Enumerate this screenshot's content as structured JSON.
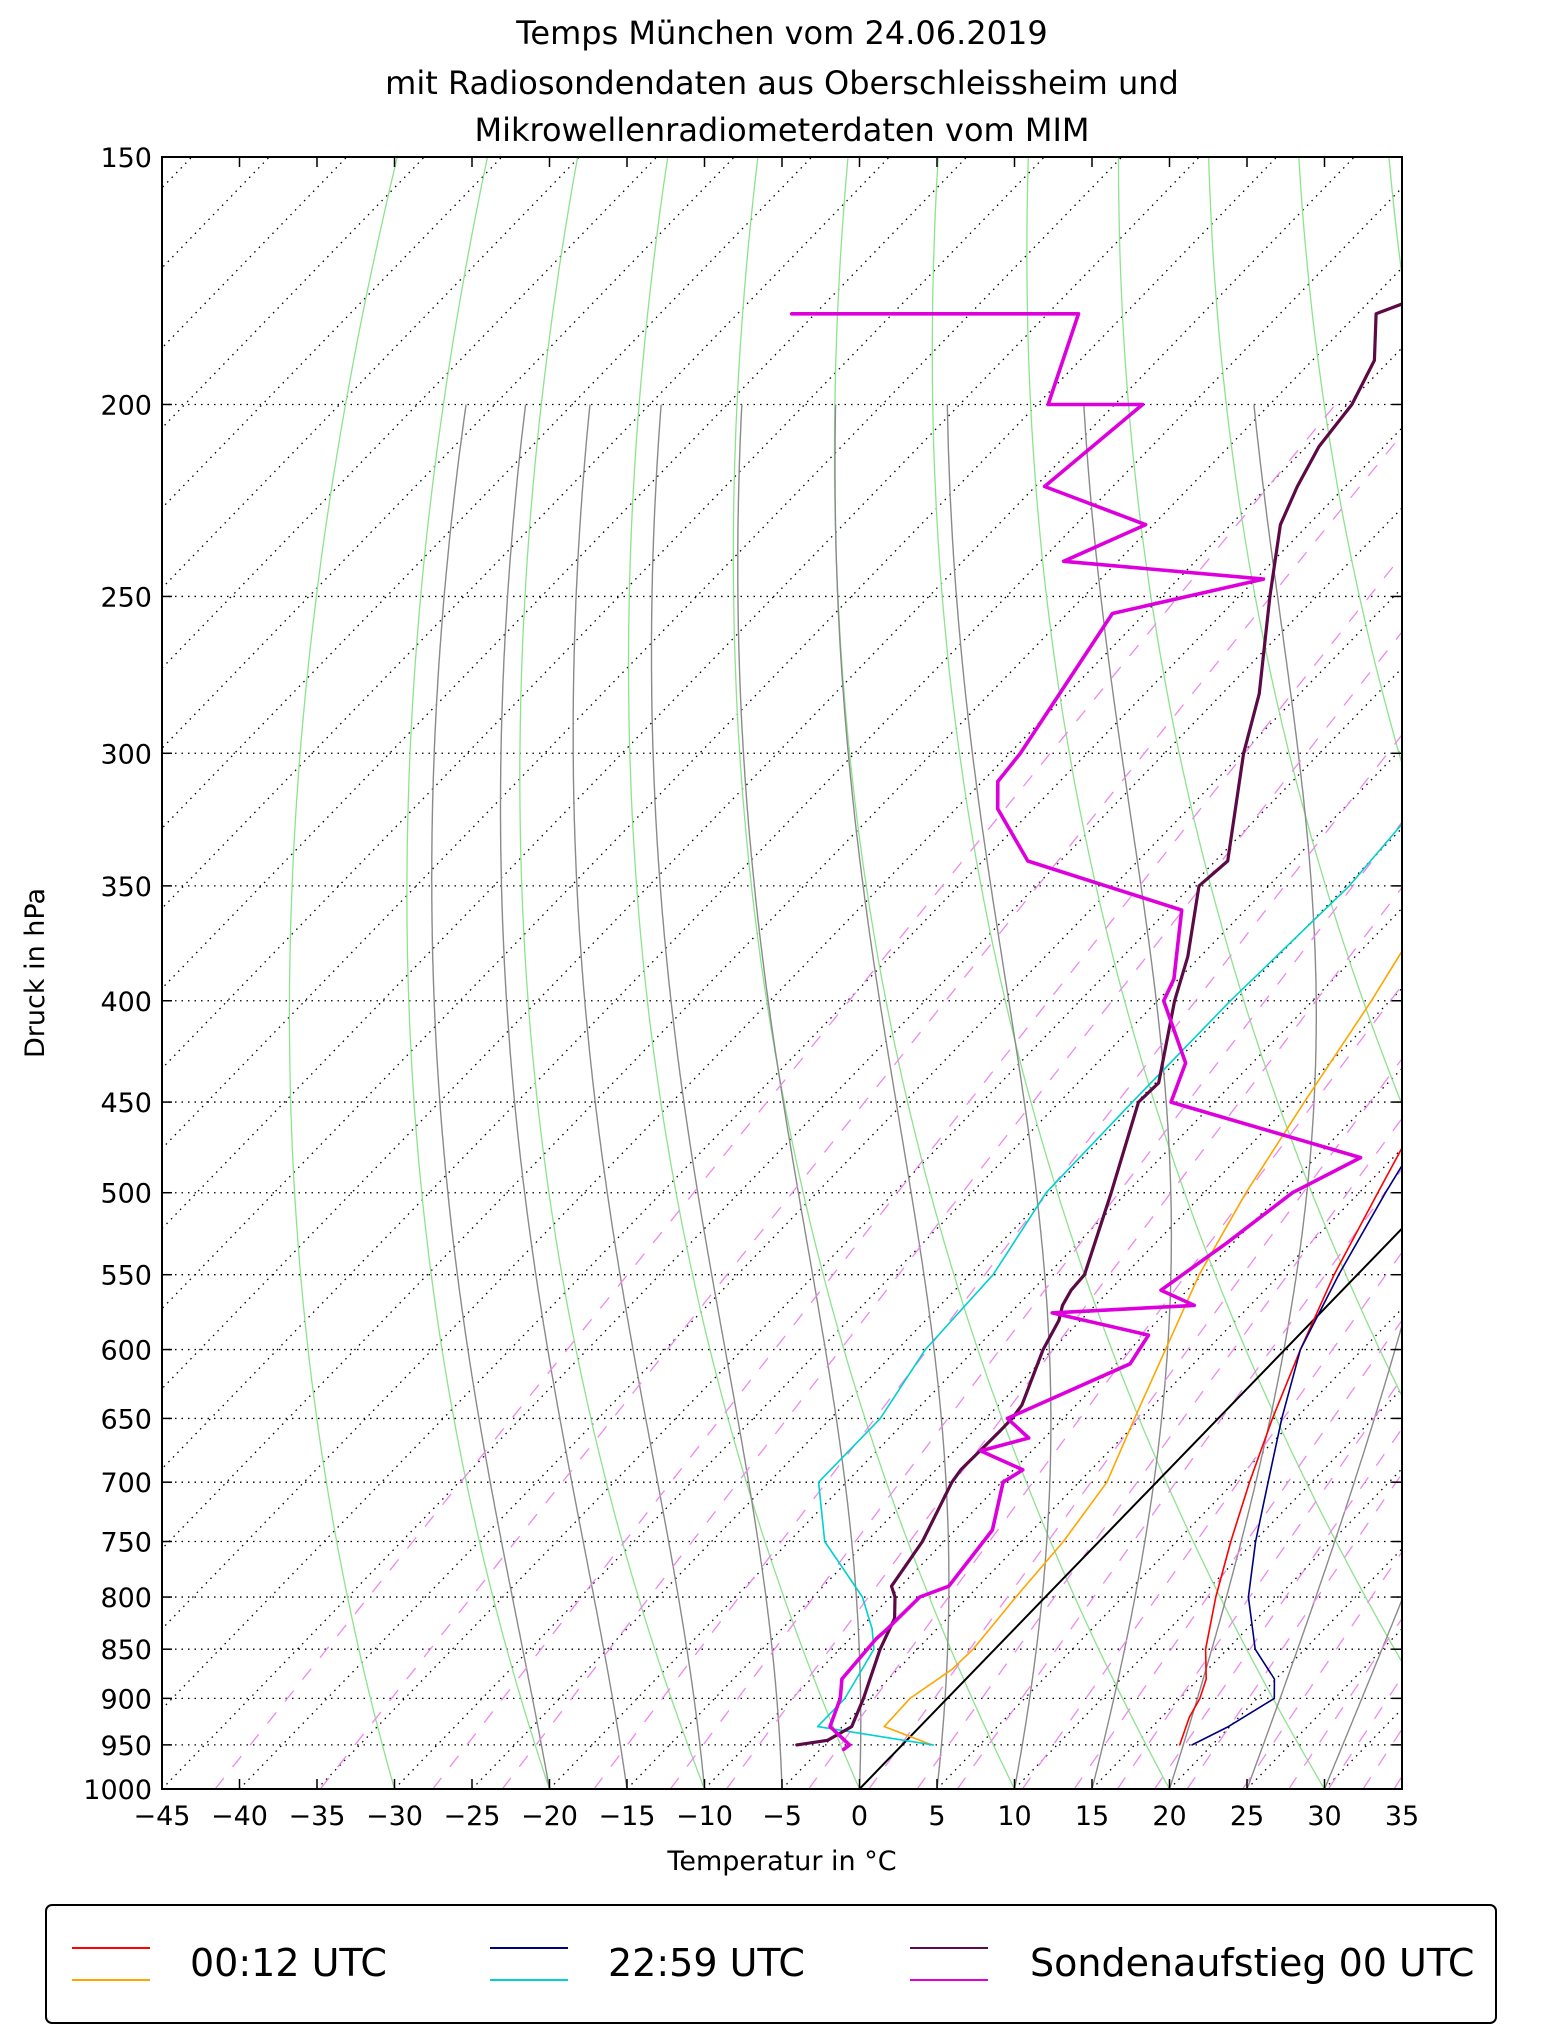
{
  "chart_data": {
    "type": "line",
    "title": [
      "Temps München vom 24.06.2019",
      "mit Radiosondendaten aus Oberschleissheim und",
      "Mikrowellenradiometerdaten vom MIM"
    ],
    "xlabel": "Temperatur in °C",
    "ylabel": "Druck in hPa",
    "xlim": [
      -45,
      35
    ],
    "ylim": [
      1000,
      150
    ],
    "y_scale": "log",
    "skew_t": true,
    "grid": true,
    "legend_position": "bottom",
    "x_ticks": [
      -45,
      -40,
      -35,
      -30,
      -25,
      -20,
      -15,
      -10,
      -5,
      0,
      5,
      10,
      15,
      20,
      25,
      30,
      35
    ],
    "x_tick_labels": [
      "−45",
      "−40",
      "−35",
      "−30",
      "−25",
      "−20",
      "−15",
      "−10",
      "−5",
      "0",
      "5",
      "10",
      "15",
      "20",
      "25",
      "30",
      "35"
    ],
    "y_ticks": [
      150,
      200,
      250,
      300,
      350,
      400,
      450,
      500,
      550,
      600,
      650,
      700,
      750,
      800,
      850,
      900,
      950,
      1000
    ],
    "y_tick_labels": [
      "150",
      "200",
      "250",
      "300",
      "350",
      "400",
      "450",
      "500",
      "550",
      "600",
      "650",
      "700",
      "750",
      "800",
      "850",
      "900",
      "950",
      "1000"
    ],
    "legend": [
      {
        "label": "00:12 UTC",
        "colors": [
          "#ff0000",
          "#ffa500"
        ]
      },
      {
        "label": "22:59 UTC",
        "colors": [
          "#000080",
          "#00d0d0"
        ]
      },
      {
        "label": "Sondenaufstieg 00 UTC",
        "colors": [
          "#5c0a45",
          "#dd00dd"
        ]
      }
    ],
    "series": [
      {
        "color": "#ff0000",
        "width": 1.6,
        "p": [
          250,
          300,
          350,
          400,
          450,
          500,
          550,
          600,
          650,
          700,
          750,
          800,
          850,
          880,
          900,
          920,
          950
        ],
        "t": [
          -17.3,
          -14.4,
          -11.4,
          -8.7,
          -6.3,
          -3.8,
          -1.5,
          1.0,
          3.5,
          6.0,
          8.5,
          11.0,
          13.6,
          15.5,
          16.3,
          16.8,
          17.9
        ]
      },
      {
        "color": "#ffa500",
        "width": 1.6,
        "p": [
          250,
          300,
          350,
          400,
          450,
          500,
          550,
          600,
          650,
          700,
          750,
          800,
          850,
          870,
          900,
          930,
          950
        ],
        "t": [
          -24.6,
          -21.8,
          -18.8,
          -16.2,
          -14.2,
          -12.3,
          -10.2,
          -7.7,
          -5.4,
          -3.2,
          -2.3,
          -1.9,
          -1.4,
          -1.5,
          -2.4,
          -2.3,
          1.9
        ]
      },
      {
        "color": "#000080",
        "width": 1.6,
        "p": [
          250,
          300,
          350,
          400,
          450,
          500,
          550,
          600,
          650,
          700,
          750,
          800,
          850,
          880,
          900,
          930,
          950
        ],
        "t": [
          -16.6,
          -12.7,
          -9.8,
          -8.0,
          -5.4,
          -3.3,
          -1.2,
          1.0,
          4.1,
          7.2,
          10.1,
          13.1,
          16.8,
          19.9,
          21.1,
          19.9,
          18.7
        ]
      },
      {
        "color": "#00d0d0",
        "width": 1.6,
        "p": [
          250,
          300,
          350,
          400,
          450,
          500,
          550,
          600,
          650,
          700,
          750,
          800,
          830,
          850,
          900,
          930,
          950
        ],
        "t": [
          -25.9,
          -25.8,
          -24.8,
          -25.3,
          -25.3,
          -25.2,
          -23.5,
          -23.2,
          -21.8,
          -21.8,
          -17.7,
          -11.8,
          -9.2,
          -7.8,
          -6.6,
          -6.6,
          2.0
        ]
      },
      {
        "color": "#5c0a45",
        "width": 3.2,
        "p": [
          150,
          170,
          180,
          190,
          200,
          210,
          220,
          230,
          250,
          280,
          300,
          340,
          350,
          380,
          400,
          440,
          450,
          500,
          550,
          560,
          570,
          580,
          600,
          640,
          650,
          660,
          690,
          700,
          750,
          790,
          800,
          820,
          850,
          900,
          930,
          945,
          950
        ],
        "t": [
          -48.0,
          -53.5,
          -58.8,
          -56.0,
          -54.7,
          -54.2,
          -53.1,
          -51.8,
          -48.0,
          -42.6,
          -39.9,
          -34.2,
          -34.5,
          -30.8,
          -28.9,
          -24.8,
          -24.9,
          -21.0,
          -17.6,
          -17.5,
          -17.1,
          -16.4,
          -15.6,
          -13.5,
          -13.3,
          -13.3,
          -13.4,
          -13.2,
          -11.4,
          -10.6,
          -9.7,
          -8.4,
          -7.4,
          -5.4,
          -4.4,
          -5.1,
          -6.8
        ]
      },
      {
        "color": "#dd00dd",
        "width": 3.6,
        "p": [
          180,
          180,
          200,
          200,
          220,
          230,
          240,
          245,
          255,
          300,
          310,
          320,
          340,
          360,
          390,
          400,
          430,
          450,
          480,
          500,
          530,
          560,
          570,
          575,
          590,
          610,
          650,
          665,
          675,
          690,
          700,
          740,
          790,
          800,
          830,
          840,
          880,
          900,
          930,
          950,
          955
        ],
        "t": [
          -96.5,
          -78.0,
          -74.3,
          -68.2,
          -69.4,
          -60.5,
          -63.5,
          -49.5,
          -57.1,
          -54.3,
          -54.0,
          -52.3,
          -47.1,
          -34.1,
          -30.3,
          -29.6,
          -24.3,
          -22.8,
          -7.1,
          -9.3,
          -10.4,
          -11.7,
          -8.6,
          -17.3,
          -9.7,
          -9.1,
          -13.6,
          -11.0,
          -13.3,
          -9.4,
          -9.9,
          -7.6,
          -6.9,
          -8.1,
          -8.2,
          -8.3,
          -8.0,
          -6.9,
          -5.8,
          -3.4,
          -3.5
        ]
      }
    ]
  }
}
